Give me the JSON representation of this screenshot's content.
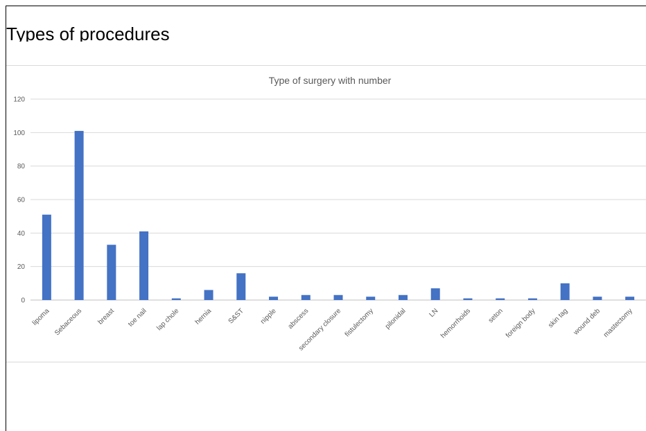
{
  "page": {
    "title": "Types of procedures"
  },
  "chart_data": {
    "type": "bar",
    "title": "Type of surgery with number",
    "xlabel": "",
    "ylabel": "",
    "ylim": [
      0,
      120
    ],
    "yticks": [
      0,
      20,
      40,
      60,
      80,
      100,
      120
    ],
    "grid": true,
    "legend": "none",
    "bar_color": "#4472C4",
    "categories": [
      "lipoma",
      "Sebaceous",
      "breast",
      "toe nail",
      "lap chole",
      "hernia",
      "S&ST",
      "nipple",
      "abscess",
      "secondary closure",
      "fistulectomy",
      "pilonidal",
      "LN",
      "hemorrhoids",
      "seton",
      "foreign body",
      "skin tag",
      "wound deb",
      "mastectomy"
    ],
    "values": [
      51,
      101,
      33,
      41,
      1,
      6,
      16,
      2,
      3,
      3,
      2,
      3,
      7,
      1,
      1,
      1,
      10,
      2,
      2
    ]
  }
}
